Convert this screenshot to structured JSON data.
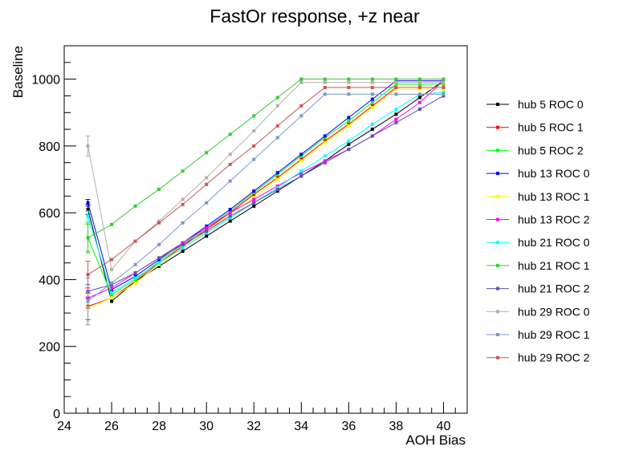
{
  "chart_data": {
    "type": "line",
    "title": "FastOr response, +z near",
    "xlabel": "AOH Bias",
    "ylabel": "Baseline",
    "xlim": [
      24,
      41
    ],
    "ylim": [
      0,
      1100
    ],
    "xticks": [
      24,
      26,
      28,
      30,
      32,
      34,
      36,
      38,
      40
    ],
    "yticks": [
      0,
      200,
      400,
      600,
      800,
      1000
    ],
    "legend_position": "right",
    "x": [
      25,
      26,
      27,
      28,
      29,
      30,
      31,
      32,
      33,
      34,
      35,
      36,
      37,
      38,
      39,
      40
    ],
    "series": [
      {
        "name": "hub 5 ROC 0",
        "color": "#000000",
        "y": [
          610,
          335,
          395,
          440,
          485,
          530,
          575,
          620,
          665,
          710,
          755,
          805,
          850,
          895,
          945,
          995
        ],
        "err": [
          15,
          4,
          3,
          3,
          3,
          3,
          3,
          3,
          3,
          3,
          3,
          3,
          3,
          3,
          3,
          3
        ]
      },
      {
        "name": "hub 5 ROC 1",
        "color": "#ff0000",
        "y": [
          320,
          345,
          395,
          450,
          500,
          550,
          600,
          655,
          705,
          760,
          815,
          865,
          920,
          975,
          975,
          975
        ],
        "err": [
          40,
          4,
          3,
          3,
          3,
          3,
          3,
          3,
          3,
          3,
          3,
          3,
          3,
          3,
          3,
          3
        ]
      },
      {
        "name": "hub 5 ROC 2",
        "color": "#00ff00",
        "y": [
          525,
          355,
          400,
          455,
          505,
          555,
          605,
          660,
          715,
          770,
          825,
          875,
          930,
          985,
          985,
          985
        ],
        "err": [
          40,
          4,
          3,
          3,
          3,
          3,
          3,
          3,
          3,
          3,
          3,
          3,
          3,
          3,
          3,
          3
        ]
      },
      {
        "name": "hub 13 ROC 0",
        "color": "#0000ff",
        "y": [
          630,
          370,
          410,
          460,
          510,
          560,
          610,
          665,
          720,
          775,
          830,
          885,
          940,
          995,
          995,
          995
        ],
        "err": [
          10,
          4,
          3,
          3,
          3,
          3,
          3,
          3,
          3,
          3,
          3,
          3,
          3,
          3,
          3,
          3
        ]
      },
      {
        "name": "hub 13 ROC 1",
        "color": "#ffff00",
        "y": [
          315,
          345,
          390,
          445,
          495,
          545,
          595,
          645,
          700,
          755,
          810,
          860,
          915,
          970,
          970,
          970
        ],
        "err": [
          40,
          4,
          3,
          3,
          3,
          3,
          3,
          3,
          3,
          3,
          3,
          3,
          3,
          3,
          3,
          3
        ]
      },
      {
        "name": "hub 13 ROC 2",
        "color": "#ff00ff",
        "y": [
          345,
          375,
          420,
          465,
          510,
          555,
          600,
          640,
          680,
          720,
          755,
          790,
          830,
          880,
          930,
          995
        ],
        "err": [
          30,
          4,
          3,
          3,
          3,
          3,
          3,
          3,
          3,
          3,
          3,
          3,
          3,
          3,
          3,
          3
        ]
      },
      {
        "name": "hub 21 ROC 0",
        "color": "#00ffff",
        "y": [
          590,
          360,
          405,
          450,
          495,
          540,
          585,
          630,
          675,
          725,
          770,
          815,
          865,
          910,
          955,
          960
        ],
        "err": [
          15,
          4,
          3,
          3,
          3,
          3,
          3,
          3,
          3,
          3,
          3,
          3,
          3,
          3,
          3,
          3
        ]
      },
      {
        "name": "hub 21 ROC 1",
        "color": "#33cc33",
        "y": [
          525,
          565,
          620,
          670,
          725,
          780,
          835,
          890,
          945,
          1000,
          1000,
          1000,
          1000,
          1000,
          1000,
          1000
        ],
        "err": [
          45,
          4,
          3,
          3,
          3,
          3,
          3,
          3,
          3,
          3,
          3,
          3,
          3,
          3,
          3,
          3
        ]
      },
      {
        "name": "hub 21 ROC 2",
        "color": "#5b52b3",
        "y": [
          365,
          385,
          420,
          465,
          505,
          545,
          590,
          630,
          670,
          710,
          750,
          790,
          830,
          870,
          910,
          950
        ],
        "err": [
          20,
          4,
          3,
          3,
          3,
          3,
          3,
          3,
          3,
          3,
          3,
          3,
          3,
          3,
          3,
          3
        ]
      },
      {
        "name": "hub 29 ROC 0",
        "color": "#b5aea8",
        "y": [
          800,
          430,
          515,
          575,
          640,
          705,
          775,
          845,
          920,
          990,
          990,
          990,
          990,
          990,
          990,
          990
        ],
        "err": [
          30,
          4,
          3,
          3,
          3,
          3,
          3,
          3,
          3,
          3,
          3,
          3,
          3,
          3,
          3,
          3
        ]
      },
      {
        "name": "hub 29 ROC 1",
        "color": "#7799cc",
        "y": [
          335,
          390,
          445,
          505,
          570,
          630,
          695,
          760,
          825,
          890,
          955,
          955,
          955,
          955,
          955,
          955
        ],
        "err": [
          70,
          4,
          3,
          3,
          3,
          3,
          3,
          3,
          3,
          3,
          3,
          3,
          3,
          3,
          3,
          3
        ]
      },
      {
        "name": "hub 29 ROC 2",
        "color": "#cc5555",
        "y": [
          415,
          460,
          515,
          570,
          625,
          685,
          745,
          800,
          860,
          920,
          975,
          975,
          975,
          975,
          975,
          975
        ],
        "err": [
          40,
          4,
          3,
          3,
          3,
          3,
          3,
          3,
          3,
          3,
          3,
          3,
          3,
          3,
          3,
          3
        ]
      }
    ]
  }
}
